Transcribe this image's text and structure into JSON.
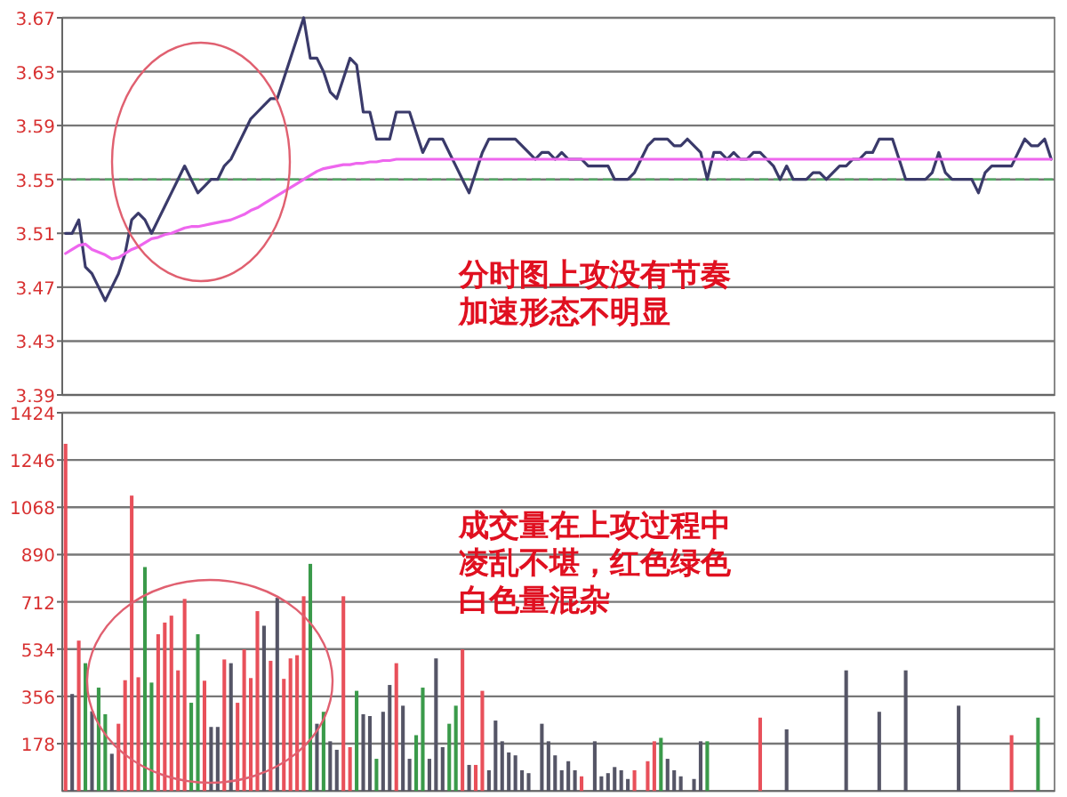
{
  "chart_data": [
    {
      "type": "line",
      "categories": [
        null,
        null,
        null,
        null,
        null,
        null,
        null,
        null,
        null,
        null,
        null,
        null,
        null,
        null,
        null,
        null,
        null,
        null,
        null,
        null,
        null,
        null,
        null,
        null,
        null,
        null,
        null,
        null,
        null,
        null,
        null,
        null,
        null,
        null,
        null,
        null,
        null,
        null,
        null,
        null,
        null,
        null,
        null,
        null,
        null,
        null,
        null,
        null,
        null,
        null,
        null,
        null,
        null,
        null,
        null,
        null,
        null,
        null,
        null,
        null,
        null,
        null,
        null,
        null,
        null,
        null,
        null,
        null,
        null,
        null,
        null,
        null,
        null,
        null,
        null,
        null,
        null,
        null,
        null,
        null,
        null,
        null,
        null,
        null,
        null,
        null,
        null,
        null,
        null,
        null,
        null,
        null,
        null,
        null,
        null,
        null,
        null,
        null,
        null,
        null,
        null,
        null,
        null,
        null,
        null,
        null,
        null,
        null,
        null,
        null,
        null,
        null,
        null,
        null,
        null,
        null,
        null,
        null,
        null,
        null,
        null,
        null,
        null,
        null,
        null,
        null,
        null,
        null,
        null,
        null,
        null,
        null,
        null,
        null,
        null,
        null,
        null,
        null,
        null,
        null,
        null,
        null,
        null,
        null,
        null,
        null,
        null,
        null,
        null,
        null
      ],
      "ylim": [
        3.39,
        3.67
      ],
      "yticks": [
        3.39,
        3.43,
        3.47,
        3.51,
        3.55,
        3.59,
        3.63,
        3.67
      ],
      "grid": "y",
      "tick_labels": "y",
      "ref_lines": [
        {
          "axis": "y",
          "value": 3.55,
          "color": "#55aa66",
          "line_style": "dashed"
        }
      ],
      "annotations": [
        "分时图上攻没有节奏",
        "加速形态不明显"
      ],
      "series": [
        {
          "color": "#3a3a6a",
          "values": [
            3.51,
            3.51,
            3.52,
            3.485,
            3.48,
            3.47,
            3.46,
            3.47,
            3.48,
            3.495,
            3.52,
            3.525,
            3.52,
            3.51,
            3.52,
            3.53,
            3.54,
            3.55,
            3.56,
            3.55,
            3.54,
            3.545,
            3.55,
            3.55,
            3.56,
            3.565,
            3.575,
            3.585,
            3.595,
            3.6,
            3.605,
            3.61,
            3.61,
            3.625,
            3.64,
            3.655,
            3.67,
            3.64,
            3.64,
            3.63,
            3.615,
            3.61,
            3.625,
            3.64,
            3.635,
            3.6,
            3.6,
            3.58,
            3.58,
            3.58,
            3.6,
            3.6,
            3.6,
            3.585,
            3.57,
            3.58,
            3.58,
            3.58,
            3.57,
            3.56,
            3.55,
            3.54,
            3.555,
            3.57,
            3.58,
            3.58,
            3.58,
            3.58,
            3.58,
            3.575,
            3.57,
            3.565,
            3.57,
            3.57,
            3.565,
            3.57,
            3.565,
            3.565,
            3.565,
            3.56,
            3.56,
            3.56,
            3.56,
            3.55,
            3.55,
            3.55,
            3.555,
            3.565,
            3.575,
            3.58,
            3.58,
            3.58,
            3.575,
            3.575,
            3.58,
            3.575,
            3.57,
            3.55,
            3.57,
            3.57,
            3.565,
            3.57,
            3.565,
            3.565,
            3.57,
            3.57,
            3.565,
            3.56,
            3.55,
            3.56,
            3.55,
            3.55,
            3.55,
            3.555,
            3.555,
            3.55,
            3.555,
            3.56,
            3.56,
            3.565,
            3.565,
            3.57,
            3.57,
            3.58,
            3.58,
            3.58,
            3.565,
            3.55,
            3.55,
            3.55,
            3.55,
            3.555,
            3.57,
            3.555,
            3.55,
            3.55,
            3.55,
            3.55,
            3.54,
            3.555,
            3.56,
            3.56,
            3.56,
            3.56,
            3.57,
            3.58,
            3.575,
            3.575,
            3.58,
            3.565
          ]
        },
        {
          "color": "#ee66ee",
          "values": [
            3.495,
            3.498,
            3.501,
            3.502,
            3.498,
            3.496,
            3.494,
            3.491,
            3.492,
            3.495,
            3.498,
            3.5,
            3.503,
            3.506,
            3.507,
            3.509,
            3.51,
            3.512,
            3.514,
            3.515,
            3.515,
            3.516,
            3.517,
            3.518,
            3.519,
            3.52,
            3.522,
            3.524,
            3.527,
            3.529,
            3.532,
            3.535,
            3.538,
            3.541,
            3.544,
            3.547,
            3.55,
            3.553,
            3.556,
            3.558,
            3.559,
            3.56,
            3.561,
            3.561,
            3.562,
            3.562,
            3.563,
            3.563,
            3.564,
            3.564,
            3.565,
            3.565,
            3.565,
            3.565,
            3.565,
            3.565,
            3.565,
            3.565,
            3.565,
            3.565,
            3.565,
            3.565,
            3.565,
            3.565,
            3.565,
            3.565,
            3.565,
            3.565,
            3.565,
            3.565,
            3.565,
            3.565,
            3.565,
            3.565,
            3.565,
            3.565,
            3.565,
            3.565,
            3.565,
            3.565,
            3.565,
            3.565,
            3.565,
            3.565,
            3.565,
            3.565,
            3.565,
            3.565,
            3.565,
            3.565,
            3.565,
            3.565,
            3.565,
            3.565,
            3.565,
            3.565,
            3.565,
            3.565,
            3.565,
            3.565,
            3.565,
            3.565,
            3.565,
            3.565,
            3.565,
            3.565,
            3.565,
            3.565,
            3.565,
            3.565,
            3.565,
            3.565,
            3.565,
            3.565,
            3.565,
            3.565,
            3.565,
            3.565,
            3.565,
            3.565,
            3.565,
            3.565,
            3.565,
            3.565,
            3.565,
            3.565,
            3.565,
            3.565,
            3.565,
            3.565,
            3.565,
            3.565,
            3.565,
            3.565,
            3.565,
            3.565,
            3.565,
            3.565,
            3.565,
            3.565,
            3.565,
            3.565,
            3.565,
            3.565,
            3.565,
            3.565,
            3.565,
            3.565,
            3.565,
            3.565
          ]
        }
      ]
    },
    {
      "type": "bar",
      "categories": [
        null,
        null,
        null,
        null,
        null,
        null,
        null,
        null,
        null,
        null,
        null,
        null,
        null,
        null,
        null,
        null,
        null,
        null,
        null,
        null,
        null,
        null,
        null,
        null,
        null,
        null,
        null,
        null,
        null,
        null,
        null,
        null,
        null,
        null,
        null,
        null,
        null,
        null,
        null,
        null,
        null,
        null,
        null,
        null,
        null,
        null,
        null,
        null,
        null,
        null,
        null,
        null,
        null,
        null,
        null,
        null,
        null,
        null,
        null,
        null,
        null,
        null,
        null,
        null,
        null,
        null,
        null,
        null,
        null,
        null,
        null,
        null,
        null,
        null,
        null,
        null,
        null,
        null,
        null,
        null,
        null,
        null,
        null,
        null,
        null,
        null,
        null,
        null,
        null,
        null,
        null,
        null,
        null,
        null,
        null,
        null,
        null,
        null,
        null,
        null,
        null,
        null,
        null,
        null,
        null,
        null,
        null,
        null,
        null,
        null,
        null,
        null,
        null,
        null,
        null,
        null,
        null,
        null,
        null,
        null,
        null,
        null,
        null,
        null,
        null,
        null,
        null,
        null,
        null,
        null,
        null,
        null,
        null,
        null,
        null,
        null,
        null,
        null,
        null,
        null,
        null,
        null,
        null,
        null,
        null,
        null,
        null,
        null,
        null,
        null
      ],
      "ylim": [
        0,
        1424
      ],
      "yticks": [
        178,
        356,
        534,
        712,
        890,
        1068,
        1246,
        1424
      ],
      "grid": "y",
      "tick_labels": "y",
      "annotations": [
        "成交量在上攻过程中",
        "凌乱不堪，红色绿色",
        "白色量混杂"
      ],
      "values": [
        1307,
        365,
        566,
        481,
        300,
        389,
        289,
        140,
        253,
        417,
        1112,
        428,
        843,
        408,
        590,
        634,
        660,
        454,
        723,
        332,
        590,
        415,
        241,
        241,
        495,
        481,
        332,
        533,
        425,
        677,
        622,
        490,
        727,
        422,
        499,
        511,
        733,
        855,
        253,
        298,
        187,
        155,
        733,
        165,
        377,
        289,
        282,
        121,
        298,
        399,
        481,
        321,
        121,
        210,
        389,
        121,
        499,
        165,
        253,
        321,
        533,
        98,
        98,
        377,
        78,
        265,
        187,
        145,
        134,
        78,
        67,
        null,
        253,
        187,
        134,
        78,
        112,
        78,
        55,
        null,
        187,
        55,
        67,
        90,
        78,
        45,
        78,
        null,
        112,
        187,
        200,
        121,
        78,
        55,
        null,
        45,
        187,
        187,
        null,
        null,
        null,
        null,
        null,
        null,
        null,
        276,
        null,
        null,
        null,
        232,
        null,
        null,
        null,
        null,
        null,
        null,
        null,
        null,
        454,
        null,
        null,
        null,
        null,
        298,
        null,
        null,
        null,
        454,
        null,
        null,
        null,
        null,
        null,
        null,
        null,
        321,
        null,
        null,
        null,
        null,
        null,
        null,
        null,
        210,
        null,
        null,
        null,
        276,
        null,
        null
      ],
      "colors": [
        "#e8505a",
        "#555566",
        "#e8505a",
        "#3a9a4a",
        "#555566",
        "#3a9a4a",
        "#3a9a4a",
        "#555566",
        "#e8505a",
        "#e8505a",
        "#e8505a",
        "#e8505a",
        "#3a9a4a",
        "#3a9a4a",
        "#e8505a",
        "#e8505a",
        "#e8505a",
        "#e8505a",
        "#e8505a",
        "#3a9a4a",
        "#3a9a4a",
        "#e8505a",
        "#555566",
        "#555566",
        "#e8505a",
        "#555566",
        "#e8505a",
        "#e8505a",
        "#e8505a",
        "#e8505a",
        "#555566",
        "#e8505a",
        "#555566",
        "#e8505a",
        "#e8505a",
        "#e8505a",
        "#e8505a",
        "#3a9a4a",
        "#555566",
        "#3a9a4a",
        "#555566",
        "#555566",
        "#e8505a",
        "#e8505a",
        "#3a9a4a",
        "#555566",
        "#555566",
        "#3a9a4a",
        "#555566",
        "#555566",
        "#e8505a",
        "#555566",
        "#555566",
        "#3a9a4a",
        "#3a9a4a",
        "#555566",
        "#555566",
        "#555566",
        "#3a9a4a",
        "#3a9a4a",
        "#e8505a",
        "#555566",
        "#e8505a",
        "#e8505a",
        "#555566",
        "#555566",
        "#555566",
        "#555566",
        "#555566",
        "#555566",
        "#555566",
        null,
        "#555566",
        "#555566",
        "#555566",
        "#555566",
        "#555566",
        "#555566",
        "#e8505a",
        null,
        "#555566",
        "#555566",
        "#555566",
        "#555566",
        "#555566",
        "#555566",
        "#e8505a",
        null,
        "#e8505a",
        "#e8505a",
        "#3a9a4a",
        "#555566",
        "#555566",
        "#555566",
        null,
        "#555566",
        "#555566",
        "#3a9a4a",
        null,
        null,
        null,
        null,
        null,
        null,
        null,
        "#e8505a",
        null,
        null,
        null,
        "#555566",
        null,
        null,
        null,
        null,
        null,
        null,
        null,
        null,
        "#555566",
        null,
        null,
        null,
        null,
        "#555566",
        null,
        null,
        null,
        "#555566",
        null,
        null,
        null,
        null,
        null,
        null,
        null,
        "#555566",
        null,
        null,
        null,
        null,
        null,
        null,
        null,
        "#e8505a",
        null,
        null,
        null,
        "#3a9a4a",
        null,
        null
      ]
    }
  ]
}
